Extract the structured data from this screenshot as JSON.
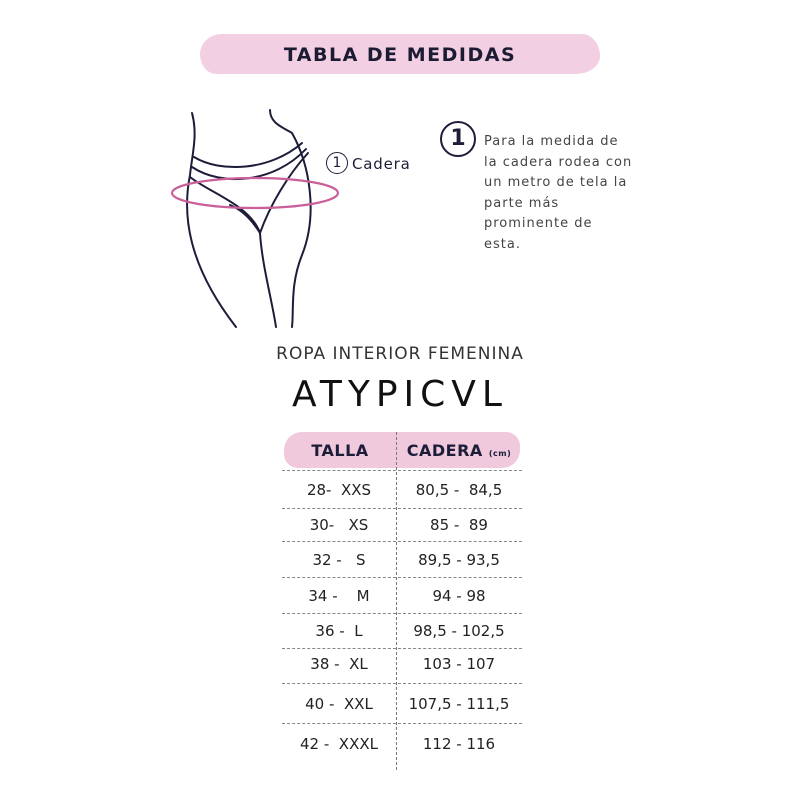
{
  "title": "TABLA DE MEDIDAS",
  "figure": {
    "marker": "1",
    "label": "Cadera"
  },
  "callout": {
    "number": "1",
    "text": "Para la medida de la cadera rodea con un metro de tela la parte más prominente de esta."
  },
  "subtitle": "ROPA INTERIOR FEMENINA",
  "brand": "ATYPICVL",
  "table": {
    "headers": {
      "talla": "TALLA",
      "cadera": "CADERA",
      "unit": "(cm)"
    },
    "rows": [
      {
        "talla": "28-  XXS",
        "cadera": "80,5 -  84,5"
      },
      {
        "talla": "30-   XS",
        "cadera": "85 -  89"
      },
      {
        "talla": "32 -   S",
        "cadera": "89,5 - 93,5"
      },
      {
        "talla": "34 -    M",
        "cadera": "94 - 98"
      },
      {
        "talla": "36 -  L",
        "cadera": "98,5 - 102,5"
      },
      {
        "talla": "38 -  XL",
        "cadera": "103 - 107"
      },
      {
        "talla": "40 -  XXL",
        "cadera": "107,5 - 111,5"
      },
      {
        "talla": "42 -  XXXL",
        "cadera": "112 - 116"
      }
    ]
  },
  "colors": {
    "banner": "#f2cfe2",
    "ink": "#1d1d3a",
    "hip_line": "#c9609a"
  }
}
